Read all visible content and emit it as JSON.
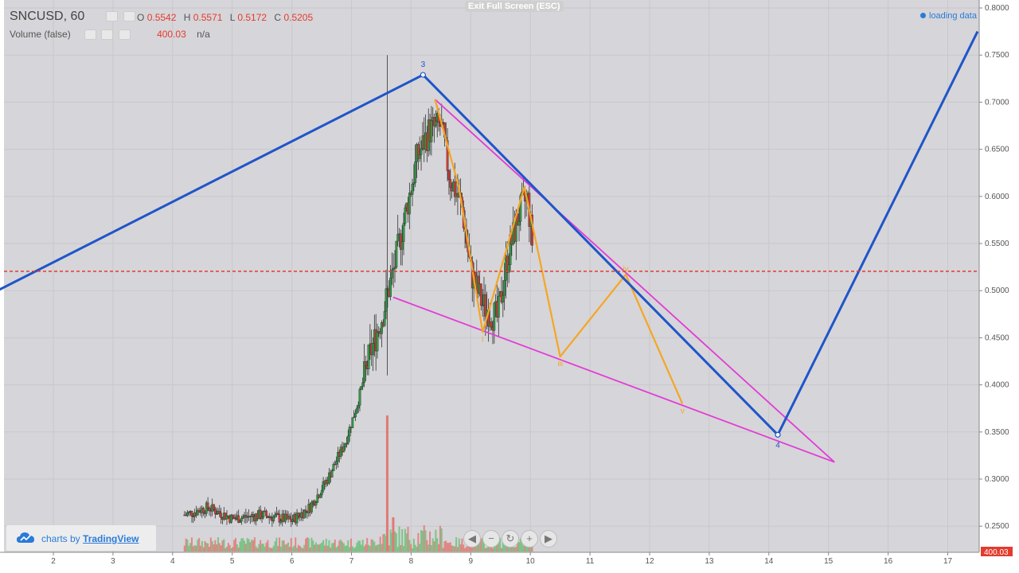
{
  "header": {
    "symbol": "SNCUSD, 60",
    "ohlc": {
      "o_label": "O",
      "o_value": "0.5542",
      "h_label": "H",
      "h_value": "0.5571",
      "l_label": "L",
      "l_value": "0.5172",
      "c_label": "C",
      "c_value": "0.5205"
    },
    "volume_label": "Volume (false)",
    "volume_value": "400.03",
    "volume_na": "n/a"
  },
  "exit_fullscreen": "Exit Full Screen (ESC)",
  "loading": "loading data",
  "attribution": {
    "prefix": "charts by",
    "brand": "TradingView"
  },
  "nav_buttons": [
    {
      "icon": "scroll-left-icon",
      "glyph": "◀"
    },
    {
      "icon": "zoom-out-icon",
      "glyph": "−"
    },
    {
      "icon": "reset-icon",
      "glyph": "↻"
    },
    {
      "icon": "zoom-in-icon",
      "glyph": "+"
    },
    {
      "icon": "scroll-right-icon",
      "glyph": "▶"
    }
  ],
  "y_axis": {
    "ticks": [
      "0.8000",
      "0.7500",
      "0.7000",
      "0.6500",
      "0.6000",
      "0.5500",
      "0.5000",
      "0.4500",
      "0.4000",
      "0.3500",
      "0.3000",
      "0.2500"
    ],
    "last_volume_tag": "400.03"
  },
  "x_axis": {
    "ticks": [
      "2",
      "3",
      "4",
      "5",
      "6",
      "7",
      "8",
      "9",
      "10",
      "11",
      "12",
      "13",
      "14",
      "15",
      "16",
      "17"
    ]
  },
  "colors": {
    "blue_wave": "#1f55c9",
    "orange_wave": "#f5a623",
    "magenta_lines": "#e23bd6",
    "price_line": "#e33b2e",
    "up": "#2e9a44",
    "down": "#d23b35",
    "bg": "#d6d5d9"
  },
  "chart_data": {
    "type": "candlestick",
    "symbol": "SNCUSD",
    "interval": "60",
    "current_price": 0.5205,
    "ylim": [
      0.23,
      0.81
    ],
    "wave_labels": {
      "blue": [
        {
          "label": "3",
          "x": 8.2,
          "y": 0.729
        },
        {
          "label": "4",
          "x": 14.15,
          "y": 0.347
        }
      ],
      "orange": [
        {
          "label": "i",
          "x": 9.2,
          "y": 0.456
        },
        {
          "label": "iii",
          "x": 10.5,
          "y": 0.43
        },
        {
          "label": "iv",
          "x": 11.6,
          "y": 0.517
        },
        {
          "label": "v",
          "x": 12.55,
          "y": 0.38
        }
      ]
    },
    "blue_wave_path": [
      [
        1.0,
        0.498
      ],
      [
        8.2,
        0.729
      ],
      [
        14.15,
        0.347
      ],
      [
        17.5,
        0.775
      ]
    ],
    "orange_wave_path": [
      [
        8.4,
        0.703
      ],
      [
        8.8,
        0.61
      ],
      [
        9.2,
        0.456
      ],
      [
        9.9,
        0.61
      ],
      [
        10.5,
        0.43
      ],
      [
        11.6,
        0.517
      ],
      [
        12.55,
        0.38
      ]
    ],
    "magenta_upper": [
      [
        8.4,
        0.703
      ],
      [
        15.1,
        0.318
      ]
    ],
    "magenta_lower": [
      [
        7.7,
        0.493
      ],
      [
        15.1,
        0.318
      ]
    ],
    "price_path": [
      [
        4.2,
        0.262
      ],
      [
        4.6,
        0.27
      ],
      [
        5.0,
        0.258
      ],
      [
        5.5,
        0.262
      ],
      [
        6.0,
        0.256
      ],
      [
        6.3,
        0.27
      ],
      [
        6.6,
        0.3
      ],
      [
        6.9,
        0.34
      ],
      [
        7.1,
        0.38
      ],
      [
        7.3,
        0.43
      ],
      [
        7.5,
        0.47
      ],
      [
        7.7,
        0.52
      ],
      [
        7.9,
        0.58
      ],
      [
        8.1,
        0.64
      ],
      [
        8.3,
        0.67
      ],
      [
        8.5,
        0.675
      ],
      [
        8.65,
        0.62
      ],
      [
        8.85,
        0.59
      ],
      [
        9.0,
        0.52
      ],
      [
        9.2,
        0.485
      ],
      [
        9.45,
        0.47
      ],
      [
        9.6,
        0.53
      ],
      [
        9.8,
        0.58
      ],
      [
        9.95,
        0.6
      ],
      [
        10.05,
        0.54
      ]
    ]
  }
}
